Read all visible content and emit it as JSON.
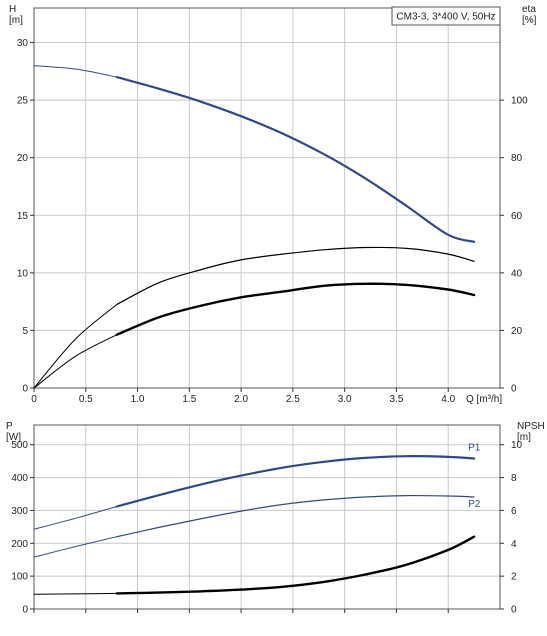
{
  "chart_data": [
    {
      "type": "line",
      "title": "CM3-3, 3*400 V, 50Hz",
      "xlabel": "Q [m³/h]",
      "ylabel_left": [
        "H",
        "[m]"
      ],
      "ylabel_right": [
        "eta",
        "[%]"
      ],
      "xlim": [
        0,
        4.5
      ],
      "ylim_left": [
        0,
        33
      ],
      "ylim_right": [
        0,
        132
      ],
      "x_ticks": [
        "0",
        "0.5",
        "1.0",
        "1.5",
        "2.0",
        "2.5",
        "3.0",
        "3.5",
        "4.0"
      ],
      "x_tick_values": [
        0,
        0.5,
        1.0,
        1.5,
        2.0,
        2.5,
        3.0,
        3.5,
        4.0
      ],
      "y_ticks_left": [
        0,
        5,
        10,
        15,
        20,
        25,
        30
      ],
      "y_ticks_right": [
        0,
        20,
        40,
        60,
        80,
        100
      ],
      "grid": true,
      "series": [
        {
          "axis": "left",
          "color": "#2c4a8a",
          "x": [
            0,
            0.4,
            0.8,
            1.2,
            1.6,
            2.0,
            2.4,
            2.8,
            3.2,
            3.6,
            4.0,
            4.25
          ],
          "y": [
            28.0,
            27.7,
            27.0,
            26.0,
            24.9,
            23.6,
            22.1,
            20.3,
            18.2,
            15.8,
            13.3,
            12.7
          ]
        },
        {
          "axis": "right",
          "color": "#000000",
          "x": [
            0,
            0.4,
            0.8,
            1.2,
            1.6,
            2.0,
            2.4,
            2.8,
            3.2,
            3.6,
            4.0,
            4.25
          ],
          "y": [
            0,
            17,
            29,
            36.5,
            41,
            44.5,
            46.5,
            48,
            48.8,
            48.5,
            46.5,
            44
          ]
        },
        {
          "axis": "right",
          "color": "#000000",
          "x": [
            0,
            0.4,
            0.8,
            1.2,
            1.6,
            2.0,
            2.4,
            2.8,
            3.2,
            3.6,
            4.0,
            4.25
          ],
          "y": [
            0,
            11,
            18.5,
            24.5,
            28.5,
            31.5,
            33.5,
            35.5,
            36.2,
            35.8,
            34.2,
            32.3
          ]
        }
      ]
    },
    {
      "type": "line",
      "xlabel": "",
      "ylabel_left": [
        "P",
        "[W]"
      ],
      "ylabel_right": [
        "NPSH",
        "[m]"
      ],
      "xlim": [
        0,
        4.5
      ],
      "ylim_left": [
        0,
        560
      ],
      "ylim_right": [
        0,
        11.2
      ],
      "y_ticks_left": [
        0,
        100,
        200,
        300,
        400,
        500
      ],
      "y_ticks_right": [
        0,
        2,
        4,
        6,
        8,
        10
      ],
      "grid": true,
      "series": [
        {
          "name": "P1",
          "axis": "left",
          "color": "#2c4a8a",
          "x": [
            0,
            0.4,
            0.8,
            1.2,
            1.6,
            2.0,
            2.4,
            2.8,
            3.2,
            3.6,
            4.0,
            4.25
          ],
          "y": [
            243,
            276,
            312,
            346,
            378,
            406,
            430,
            448,
            460,
            465,
            463,
            458
          ]
        },
        {
          "name": "P2",
          "axis": "left",
          "color": "#2c4a8a",
          "x": [
            0,
            0.4,
            0.8,
            1.2,
            1.6,
            2.0,
            2.4,
            2.8,
            3.2,
            3.6,
            4.0,
            4.25
          ],
          "y": [
            158,
            190,
            220,
            248,
            274,
            298,
            318,
            332,
            341,
            345,
            344,
            341
          ]
        },
        {
          "axis": "right",
          "color": "#000000",
          "x": [
            0,
            0.4,
            0.8,
            1.2,
            1.6,
            2.0,
            2.4,
            2.8,
            3.2,
            3.6,
            4.0,
            4.25
          ],
          "y": [
            0.9,
            0.92,
            0.95,
            1.0,
            1.07,
            1.18,
            1.35,
            1.65,
            2.1,
            2.7,
            3.6,
            4.4
          ]
        }
      ]
    }
  ]
}
